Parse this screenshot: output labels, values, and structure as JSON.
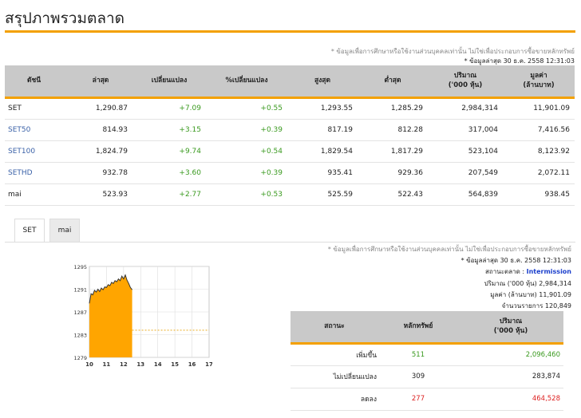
{
  "page": {
    "title": "สรุปภาพรวมตลาด"
  },
  "top_notes": {
    "disclaimer": "* ข้อมูลเพื่อการศึกษาหรือใช้งานส่วนบุคคลเท่านั้น ไม่ใช่เพื่อประกอบการซื้อขายหลักทรัพย์",
    "updated": "* ข้อมูลล่าสุด 30 ธ.ค. 2558 12:31:03"
  },
  "index_table": {
    "headers": [
      "ดัชนี",
      "ล่าสุด",
      "เปลี่ยนแปลง",
      "%เปลี่ยนแปลง",
      "สูงสุด",
      "ต่ำสุด",
      "ปริมาณ\n('000 หุ้น)",
      "มูลค่า\n(ล้านบาท)"
    ],
    "rows": [
      {
        "name": "SET",
        "link": false,
        "last": "1,290.87",
        "chg": "+7.09",
        "pct": "+0.55",
        "high": "1,293.55",
        "low": "1,285.29",
        "vol": "2,984,314",
        "val": "11,901.09"
      },
      {
        "name": "SET50",
        "link": true,
        "last": "814.93",
        "chg": "+3.15",
        "pct": "+0.39",
        "high": "817.19",
        "low": "812.28",
        "vol": "317,004",
        "val": "7,416.56"
      },
      {
        "name": "SET100",
        "link": true,
        "last": "1,824.79",
        "chg": "+9.74",
        "pct": "+0.54",
        "high": "1,829.54",
        "low": "1,817.29",
        "vol": "523,104",
        "val": "8,123.92"
      },
      {
        "name": "SETHD",
        "link": true,
        "last": "932.78",
        "chg": "+3.60",
        "pct": "+0.39",
        "high": "935.41",
        "low": "929.36",
        "vol": "207,549",
        "val": "2,072.11"
      },
      {
        "name": "mai",
        "link": false,
        "last": "523.93",
        "chg": "+2.77",
        "pct": "+0.53",
        "high": "525.59",
        "low": "522.43",
        "vol": "564,839",
        "val": "938.45"
      }
    ]
  },
  "tabs": [
    {
      "label": "SET",
      "active": true
    },
    {
      "label": "mai",
      "active": false
    }
  ],
  "chart_data": {
    "type": "area",
    "x_ticks": [
      "10",
      "11",
      "12",
      "13",
      "14",
      "15",
      "16",
      "17"
    ],
    "y_ticks": [
      "1295",
      "1291",
      "1287",
      "1283",
      "1279"
    ],
    "ylim": [
      1279,
      1295
    ],
    "xlim": [
      10,
      17
    ],
    "prev_close": 1283.78,
    "x": [
      10.0,
      10.1,
      10.2,
      10.3,
      10.4,
      10.5,
      10.6,
      10.7,
      10.8,
      10.9,
      11.0,
      11.1,
      11.2,
      11.3,
      11.4,
      11.5,
      11.6,
      11.7,
      11.8,
      11.9,
      12.0,
      12.1,
      12.2,
      12.3,
      12.4,
      12.5
    ],
    "y": [
      1288.5,
      1290.2,
      1290.0,
      1290.8,
      1290.5,
      1291.0,
      1290.6,
      1291.2,
      1290.9,
      1291.4,
      1291.3,
      1291.8,
      1291.6,
      1292.2,
      1292.0,
      1292.5,
      1292.3,
      1292.8,
      1292.5,
      1293.3,
      1292.8,
      1293.5,
      1292.6,
      1292.0,
      1291.3,
      1290.9
    ],
    "colors": {
      "fill": "#ffa500",
      "line": "#333333",
      "ref": "#e8a000"
    }
  },
  "market_info": {
    "disclaimer": "* ข้อมูลเพื่อการศึกษาหรือใช้งานส่วนบุคคลเท่านั้น ไม่ใช่เพื่อประกอบการซื้อขายหลักทรัพย์",
    "updated": "* ข้อมูลล่าสุด 30 ธ.ค. 2558 12:31:03",
    "status_label": "สถานะตลาด :",
    "status_value": "Intermission",
    "volume": "ปริมาณ ('000 หุ้น)  2,984,314",
    "value": "มูลค่า (ล้านบาท)  11,901.09",
    "trades": "จำนวนรายการ  120,849"
  },
  "market_table": {
    "headers": [
      "สถานะ",
      "หลักทรัพย์",
      "ปริมาณ\n('000 หุ้น)"
    ],
    "rows": [
      {
        "status": "เพิ่มขึ้น",
        "count": "511",
        "volume": "2,096,460",
        "color": "up"
      },
      {
        "status": "ไม่เปลี่ยนแปลง",
        "count": "309",
        "volume": "283,874",
        "color": "neutral"
      },
      {
        "status": "ลดลง",
        "count": "277",
        "volume": "464,528",
        "color": "down"
      }
    ]
  }
}
